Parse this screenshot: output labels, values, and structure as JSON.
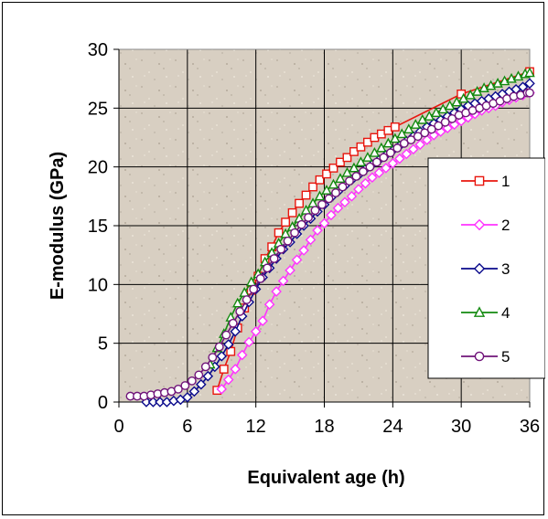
{
  "chart_data": {
    "type": "line",
    "title": "",
    "xlabel": "Equivalent age (h)",
    "ylabel": "E-modulus (GPa)",
    "xlim": [
      0,
      36
    ],
    "ylim": [
      0,
      30
    ],
    "xticks": [
      0,
      6,
      12,
      18,
      24,
      30,
      36
    ],
    "yticks": [
      0,
      5,
      10,
      15,
      20,
      25,
      30
    ],
    "grid": true,
    "legend_position": "right",
    "plot_background": "#d8cfc2",
    "series": [
      {
        "name": "1",
        "color": "#e8160e",
        "marker": "square",
        "x": [
          8.6,
          9.2,
          9.8,
          10.4,
          11.0,
          11.6,
          12.2,
          12.8,
          13.4,
          14.0,
          14.6,
          15.2,
          15.8,
          16.4,
          17.0,
          17.6,
          18.2,
          18.8,
          19.4,
          20.0,
          20.6,
          21.2,
          21.8,
          22.4,
          23.0,
          23.6,
          24.2,
          30.0,
          36.0
        ],
        "y": [
          1.0,
          2.8,
          4.3,
          6.3,
          8.0,
          9.5,
          10.7,
          12.2,
          13.2,
          14.4,
          15.3,
          16.1,
          16.9,
          17.6,
          18.3,
          18.9,
          19.4,
          19.9,
          20.4,
          20.8,
          21.3,
          21.7,
          22.1,
          22.5,
          22.8,
          23.1,
          23.4,
          26.2,
          28.1
        ]
      },
      {
        "name": "2",
        "color": "#ff33ff",
        "marker": "diamond",
        "x": [
          9.0,
          9.6,
          10.2,
          10.8,
          11.4,
          12.0,
          12.6,
          13.2,
          13.8,
          14.4,
          15.0,
          15.6,
          16.2,
          16.8,
          17.4,
          18.0,
          18.6,
          19.2,
          19.8,
          20.4,
          21.0,
          21.6,
          22.2,
          22.8,
          23.4,
          24.0,
          24.6,
          25.2,
          25.8,
          26.4,
          27.0,
          27.6,
          28.2,
          28.8,
          29.4,
          30.0,
          30.6,
          31.2,
          31.8,
          32.4,
          33.0,
          33.6,
          34.2,
          34.8,
          35.4,
          36.0
        ],
        "y": [
          1.1,
          1.9,
          2.8,
          4.0,
          5.1,
          6.0,
          6.9,
          8.3,
          9.4,
          10.3,
          11.2,
          12.1,
          12.9,
          13.8,
          14.6,
          15.2,
          15.9,
          16.5,
          17.0,
          17.5,
          18.1,
          18.6,
          19.1,
          19.5,
          19.9,
          20.3,
          20.7,
          21.1,
          21.5,
          21.9,
          22.3,
          22.7,
          23.0,
          23.3,
          23.6,
          23.9,
          24.2,
          24.5,
          24.8,
          25.0,
          25.2,
          25.5,
          25.7,
          25.9,
          26.1,
          26.3
        ]
      },
      {
        "name": "3",
        "color": "#0a0a8c",
        "marker": "diamond",
        "x": [
          2.4,
          3.0,
          3.6,
          4.2,
          4.8,
          5.4,
          6.0,
          6.6,
          7.2,
          7.8,
          8.4,
          9.0,
          9.6,
          10.2,
          10.8,
          11.4,
          12.0,
          12.6,
          13.2,
          13.8,
          14.4,
          15.0,
          15.6,
          16.2,
          16.8,
          17.4,
          18.0,
          18.6,
          19.2,
          19.8,
          20.4,
          21.0,
          21.6,
          22.2,
          22.8,
          23.4,
          24.0,
          24.6,
          25.2,
          25.8,
          26.4,
          27.0,
          27.6,
          28.2,
          28.8,
          29.4,
          30.0,
          30.6,
          31.2,
          31.8,
          32.4,
          33.0,
          33.6,
          34.2,
          34.8,
          35.4,
          36.0
        ],
        "y": [
          0.0,
          0.0,
          0.0,
          0.0,
          0.1,
          0.2,
          0.4,
          0.9,
          1.5,
          2.2,
          3.0,
          3.9,
          4.9,
          6.0,
          7.3,
          8.5,
          9.6,
          10.6,
          11.4,
          12.2,
          13.0,
          13.6,
          14.3,
          15.0,
          15.6,
          16.2,
          16.8,
          17.4,
          17.9,
          18.4,
          18.9,
          19.3,
          19.8,
          20.2,
          20.6,
          21.0,
          21.4,
          21.8,
          22.2,
          22.6,
          23.0,
          23.4,
          23.7,
          24.0,
          24.3,
          24.6,
          24.9,
          25.2,
          25.4,
          25.6,
          25.8,
          26.0,
          26.2,
          26.4,
          26.6,
          26.8,
          27.1
        ]
      },
      {
        "name": "4",
        "color": "#138a0f",
        "marker": "triangle",
        "x": [
          8.0,
          8.6,
          9.2,
          9.8,
          10.4,
          11.0,
          11.6,
          12.2,
          12.8,
          13.4,
          14.0,
          14.6,
          15.2,
          15.8,
          16.4,
          17.0,
          17.6,
          18.2,
          18.8,
          19.4,
          20.0,
          20.6,
          21.2,
          21.8,
          22.4,
          23.0,
          23.6,
          24.2,
          24.8,
          25.4,
          26.0,
          26.6,
          27.2,
          27.8,
          28.4,
          29.0,
          29.6,
          30.2,
          30.8,
          31.4,
          32.0,
          32.6,
          33.2,
          33.8,
          34.4,
          35.0,
          35.6,
          36.0
        ],
        "y": [
          3.2,
          4.6,
          5.8,
          7.2,
          8.4,
          9.3,
          10.2,
          10.9,
          11.9,
          12.7,
          13.5,
          14.3,
          14.9,
          15.6,
          16.3,
          16.9,
          17.5,
          18.0,
          18.5,
          19.0,
          19.5,
          19.9,
          20.4,
          20.8,
          21.2,
          21.6,
          22.0,
          22.4,
          22.8,
          23.2,
          23.6,
          24.0,
          24.3,
          24.6,
          24.9,
          25.2,
          25.5,
          25.8,
          26.1,
          26.4,
          26.7,
          26.9,
          27.1,
          27.3,
          27.5,
          27.7,
          27.9,
          28.0
        ]
      },
      {
        "name": "5",
        "color": "#70147a",
        "marker": "circle",
        "x": [
          1.0,
          1.6,
          2.2,
          2.8,
          3.4,
          4.0,
          4.6,
          5.2,
          5.8,
          6.4,
          7.0,
          7.6,
          8.2,
          8.8,
          9.4,
          10.0,
          10.6,
          11.2,
          11.8,
          12.4,
          13.0,
          13.6,
          14.2,
          14.8,
          15.4,
          16.0,
          16.6,
          17.2,
          17.8,
          18.4,
          19.0,
          19.6,
          20.2,
          20.8,
          21.4,
          22.0,
          22.6,
          23.2,
          23.8,
          24.4,
          25.0,
          25.6,
          26.2,
          26.8,
          27.4,
          28.0,
          28.6,
          29.2,
          29.8,
          30.4,
          31.0,
          31.6,
          32.2,
          32.8,
          33.4,
          34.0,
          34.6,
          35.2,
          35.8,
          36.0
        ],
        "y": [
          0.5,
          0.5,
          0.5,
          0.6,
          0.7,
          0.8,
          0.9,
          1.1,
          1.4,
          1.8,
          2.3,
          3.0,
          3.8,
          4.7,
          5.7,
          6.7,
          7.7,
          8.7,
          9.6,
          10.5,
          11.4,
          12.2,
          13.0,
          13.7,
          14.4,
          15.1,
          15.7,
          16.3,
          16.8,
          17.3,
          17.8,
          18.3,
          18.8,
          19.2,
          19.6,
          20.0,
          20.4,
          20.8,
          21.2,
          21.6,
          22.0,
          22.3,
          22.6,
          22.9,
          23.2,
          23.5,
          23.8,
          24.1,
          24.4,
          24.6,
          24.8,
          25.0,
          25.2,
          25.4,
          25.6,
          25.8,
          26.0,
          26.1,
          26.3,
          26.3
        ]
      }
    ]
  }
}
